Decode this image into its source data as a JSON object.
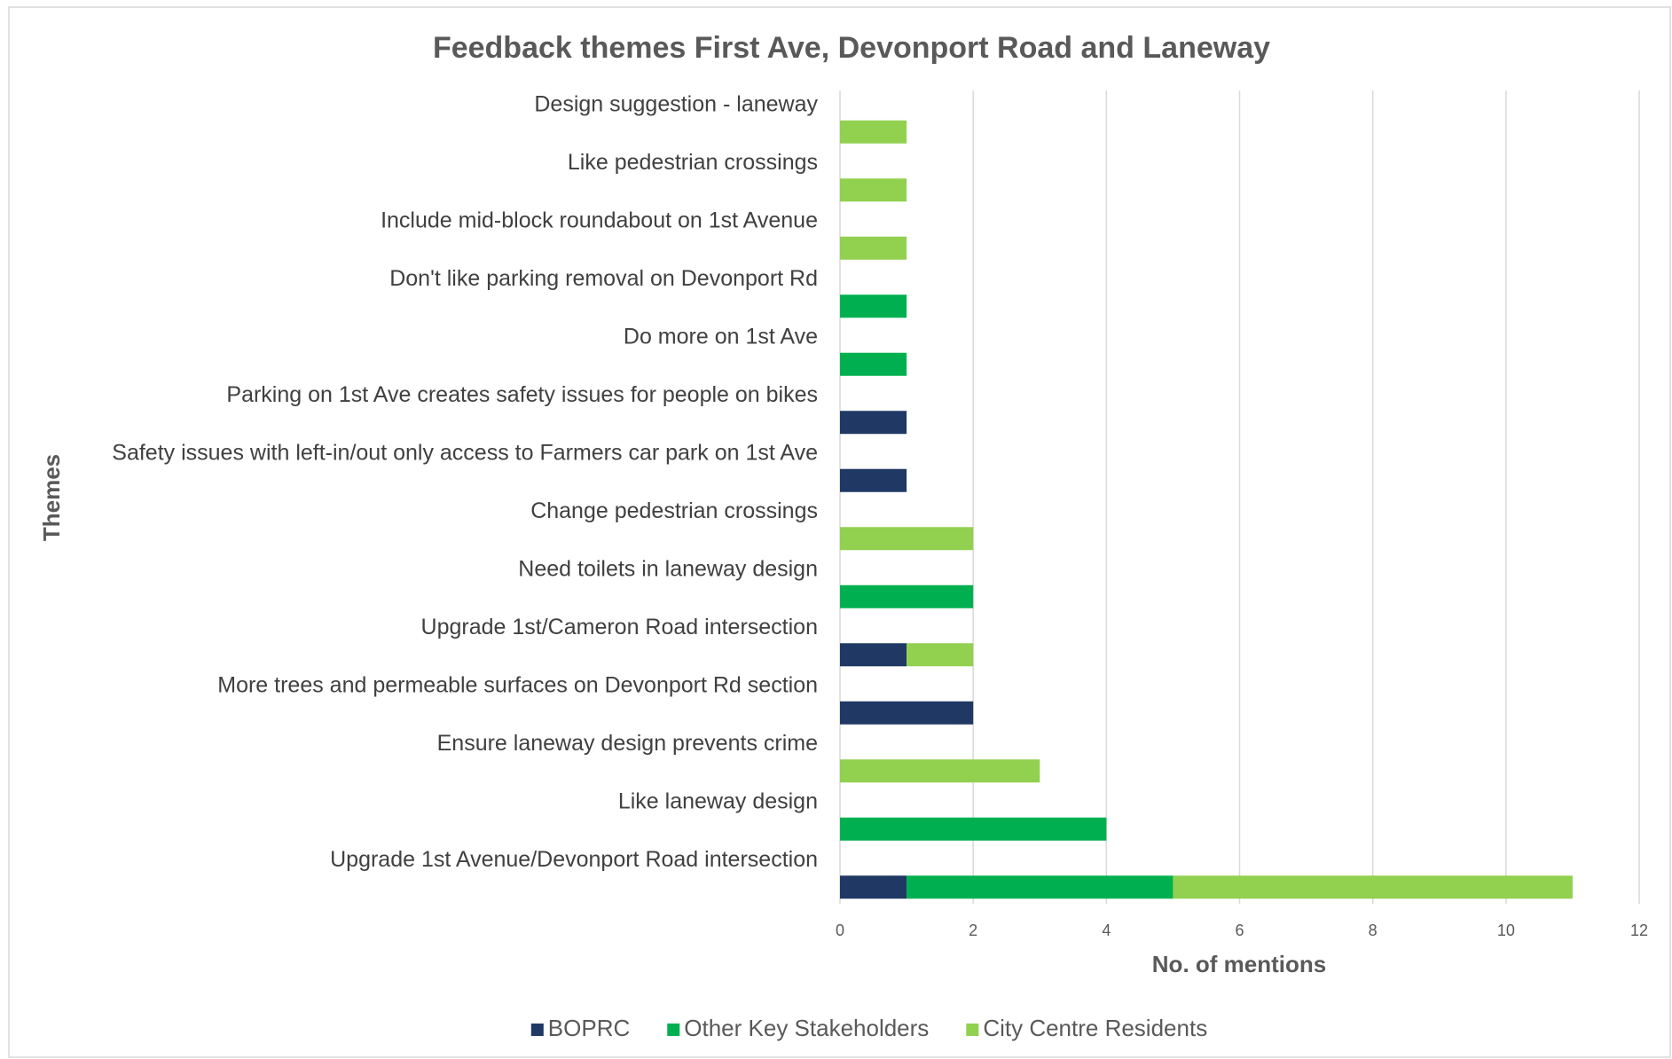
{
  "chart_data": {
    "type": "bar",
    "orientation": "horizontal",
    "stacked": true,
    "title": "Feedback themes First Ave, Devonport Road and Laneway",
    "xlabel": "No. of mentions",
    "ylabel": "Themes",
    "categories": [
      "Design suggestion - laneway",
      "Like pedestrian crossings",
      "Include mid-block roundabout on 1st Avenue",
      "Don't like parking removal on Devonport Rd",
      "Do more on 1st Ave",
      "Parking on 1st Ave creates safety issues for people on bikes",
      "Safety issues with left-in/out only access to Farmers car park on 1st Ave",
      "Change pedestrian crossings",
      "Need toilets in laneway design",
      "Upgrade 1st/Cameron Road intersection",
      "More trees and permeable surfaces on Devonport Rd section",
      "Ensure laneway design prevents crime",
      "Like laneway design",
      "Upgrade 1st Avenue/Devonport Road intersection"
    ],
    "series": [
      {
        "name": "BOPRC",
        "color": "#1f3864",
        "values": [
          0,
          0,
          0,
          0,
          0,
          1,
          1,
          0,
          0,
          1,
          2,
          0,
          0,
          1
        ]
      },
      {
        "name": "Other Key Stakeholders",
        "color": "#00b050",
        "values": [
          0,
          0,
          0,
          1,
          1,
          0,
          0,
          0,
          2,
          0,
          0,
          0,
          4,
          4
        ]
      },
      {
        "name": "City Centre Residents",
        "color": "#92d050",
        "values": [
          1,
          1,
          1,
          0,
          0,
          0,
          0,
          2,
          0,
          1,
          0,
          3,
          0,
          6
        ]
      }
    ],
    "xlim": [
      0,
      12
    ],
    "xticks": [
      0,
      2,
      4,
      6,
      8,
      10,
      12
    ],
    "grid": true,
    "legend": "bottom"
  }
}
